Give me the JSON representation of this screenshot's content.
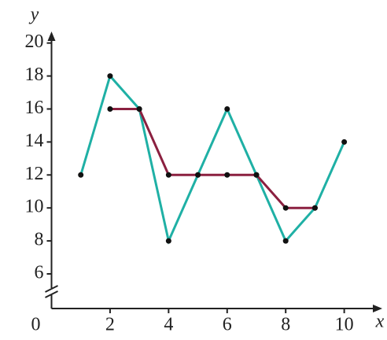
{
  "chart_data": {
    "type": "line",
    "x_label": "x",
    "y_label": "y",
    "xlim": [
      0,
      11.3
    ],
    "ylim": [
      3.9,
      20.7
    ],
    "xticks": [
      0,
      2,
      4,
      6,
      8,
      10
    ],
    "yticks": [
      6,
      8,
      10,
      12,
      14,
      16,
      18,
      20
    ],
    "series": [
      {
        "color": "#1fb0a5",
        "x": [
          1,
          2,
          3,
          4,
          5,
          6,
          7,
          8,
          9,
          10
        ],
        "values": [
          12,
          18,
          16,
          8,
          12,
          16,
          12,
          8,
          10,
          14
        ]
      },
      {
        "color": "#8b2040",
        "x": [
          2,
          3,
          4,
          5,
          6,
          7,
          8,
          9
        ],
        "values": [
          16,
          16,
          12,
          12,
          12,
          12,
          10,
          10
        ]
      }
    ]
  }
}
